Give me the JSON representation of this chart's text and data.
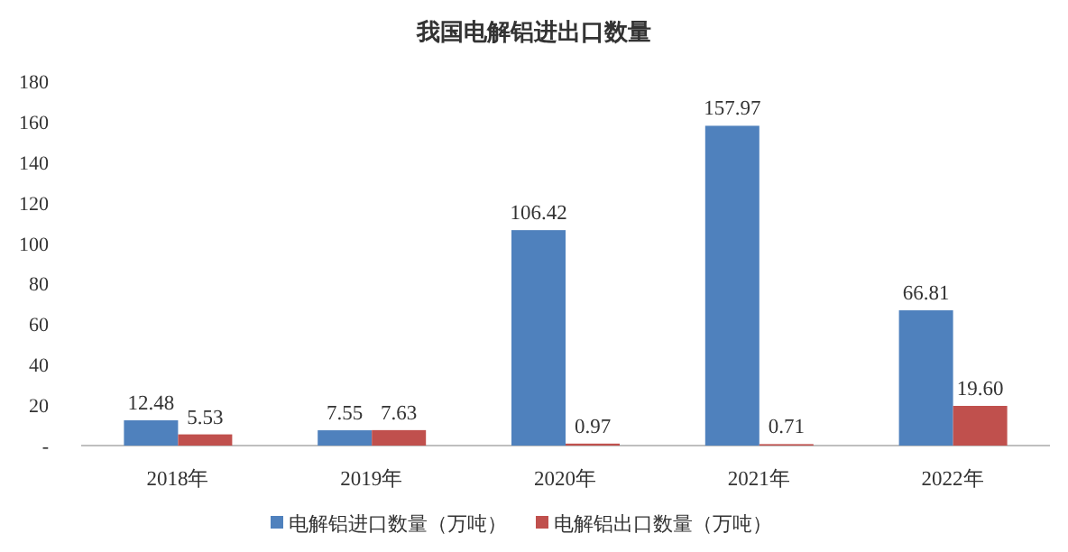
{
  "chart_data": {
    "type": "bar",
    "title": "我国电解铝进出口数量",
    "categories": [
      "2018年",
      "2019年",
      "2020年",
      "2021年",
      "2022年"
    ],
    "series": [
      {
        "name": "电解铝进口数量（万吨）",
        "color": "#4f81bd",
        "values": [
          12.48,
          7.55,
          106.42,
          157.97,
          66.81
        ]
      },
      {
        "name": "电解铝出口数量（万吨）",
        "color": "#c0504d",
        "values": [
          5.53,
          7.63,
          0.97,
          0.71,
          19.6
        ]
      }
    ],
    "value_labels": [
      [
        "12.48",
        "7.55",
        "106.42",
        "157.97",
        "66.81"
      ],
      [
        "5.53",
        "7.63",
        "0.97",
        "0.71",
        "19.60"
      ]
    ],
    "ylim": [
      0,
      180
    ],
    "yticks": [
      {
        "value": 0,
        "label": "-"
      },
      20,
      40,
      60,
      80,
      100,
      120,
      140,
      160,
      180
    ],
    "grid": false,
    "legend": "bottom"
  }
}
